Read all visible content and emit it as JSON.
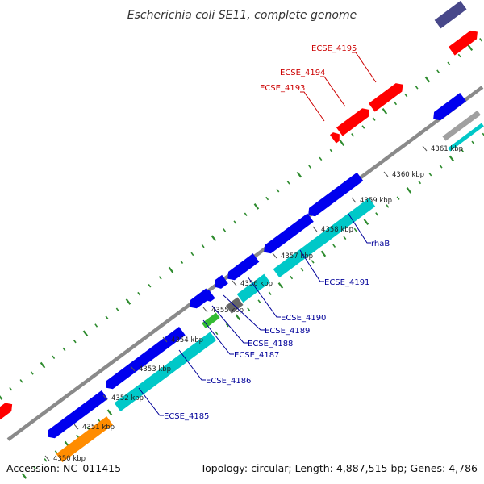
{
  "title": "Escherichia coli SE11, complete genome",
  "footer": {
    "accession": "Accession: NC_011415",
    "summary": "Topology: circular; Length: 4,887,515 bp; Genes: 4,786"
  },
  "colors": {
    "backbone": "#8a8a8a",
    "dot_track": "#2e8b2e",
    "forward_cds": "#ff0000",
    "reverse_cds": "#0000ee",
    "rna": "#00c8c8",
    "orange_feature": "#ff8c00",
    "green_feature": "#33bb33",
    "dark_gray_feature": "#666666",
    "purple_feature": "#48488a",
    "silver_feature": "#a0a0a0",
    "red_label": "#cc0000",
    "blue_label": "#000099"
  },
  "ticks": [
    {
      "label": "4350 kbp"
    },
    {
      "label": "4351 kbp"
    },
    {
      "label": "4352 kbp"
    },
    {
      "label": "4353 kbp"
    },
    {
      "label": "4354 kbp"
    },
    {
      "label": "4355 kbp"
    },
    {
      "label": "4356 kbp"
    },
    {
      "label": "4357 kbp"
    },
    {
      "label": "4358 kbp"
    },
    {
      "label": "4359 kbp"
    },
    {
      "label": "4360 kbp"
    },
    {
      "label": "4361 kbp"
    }
  ],
  "forward_labels": [
    "ECSE_4193",
    "ECSE_4194",
    "ECSE_4195"
  ],
  "reverse_labels": [
    "ECSE_4185",
    "ECSE_4186",
    "ECSE_4187",
    "ECSE_4188",
    "ECSE_4189",
    "ECSE_4190",
    "ECSE_4191",
    "rhaB"
  ]
}
